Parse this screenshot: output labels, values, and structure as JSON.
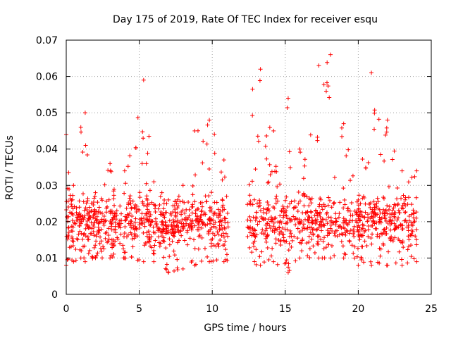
{
  "chart_data": {
    "type": "scatter",
    "title": "Day 175 of 2019, Rate Of TEC Index for receiver esqu",
    "xlabel": "GPS time / hours",
    "ylabel": "ROTI / TECUs",
    "xlim": [
      0,
      25
    ],
    "ylim": [
      0,
      0.07
    ],
    "x_ticks": [
      0,
      5,
      10,
      15,
      20,
      25
    ],
    "x_tick_labels": [
      "0",
      "5",
      "10",
      "15",
      "20",
      "25"
    ],
    "y_ticks": [
      0,
      0.01,
      0.02,
      0.03,
      0.04,
      0.05,
      0.06,
      0.07
    ],
    "y_tick_labels": [
      "0",
      "0.01",
      "0.02",
      "0.03",
      "0.04",
      "0.05",
      "0.06",
      "0.07"
    ],
    "grid": true,
    "marker": "plus",
    "marker_color": "#ff0000",
    "gaps_hours": [
      [
        11.1,
        12.4
      ]
    ],
    "envelope": [
      {
        "x": 0.0,
        "low": 0.008,
        "high": 0.044
      },
      {
        "x": 0.5,
        "low": 0.009,
        "high": 0.03
      },
      {
        "x": 1.0,
        "low": 0.01,
        "high": 0.046
      },
      {
        "x": 1.3,
        "low": 0.009,
        "high": 0.05
      },
      {
        "x": 2.0,
        "low": 0.01,
        "high": 0.028
      },
      {
        "x": 3.0,
        "low": 0.01,
        "high": 0.036
      },
      {
        "x": 4.0,
        "low": 0.01,
        "high": 0.034
      },
      {
        "x": 5.3,
        "low": 0.009,
        "high": 0.059
      },
      {
        "x": 6.0,
        "low": 0.009,
        "high": 0.031
      },
      {
        "x": 7.0,
        "low": 0.006,
        "high": 0.026
      },
      {
        "x": 8.0,
        "low": 0.007,
        "high": 0.03
      },
      {
        "x": 8.8,
        "low": 0.008,
        "high": 0.045
      },
      {
        "x": 9.8,
        "low": 0.009,
        "high": 0.048
      },
      {
        "x": 10.8,
        "low": 0.009,
        "high": 0.037
      },
      {
        "x": 13.3,
        "low": 0.008,
        "high": 0.062
      },
      {
        "x": 14.2,
        "low": 0.009,
        "high": 0.045
      },
      {
        "x": 15.2,
        "low": 0.006,
        "high": 0.054
      },
      {
        "x": 16.0,
        "low": 0.01,
        "high": 0.04
      },
      {
        "x": 17.3,
        "low": 0.01,
        "high": 0.063
      },
      {
        "x": 18.1,
        "low": 0.01,
        "high": 0.066
      },
      {
        "x": 19.0,
        "low": 0.01,
        "high": 0.047
      },
      {
        "x": 20.0,
        "low": 0.008,
        "high": 0.026
      },
      {
        "x": 20.9,
        "low": 0.008,
        "high": 0.061
      },
      {
        "x": 22.0,
        "low": 0.008,
        "high": 0.048
      },
      {
        "x": 23.0,
        "low": 0.008,
        "high": 0.034
      },
      {
        "x": 24.0,
        "low": 0.009,
        "high": 0.034
      }
    ],
    "point_count": 1500,
    "typical_range": [
      0.012,
      0.028
    ]
  }
}
